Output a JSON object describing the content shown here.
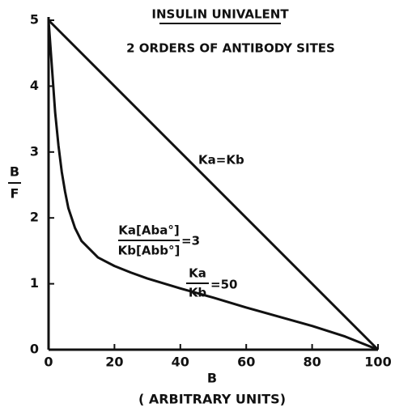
{
  "chart_data": {
    "type": "line",
    "title": "INSULIN UNIVALENT",
    "subtitle": "2 ORDERS OF ANTIBODY SITES",
    "x_label": "B",
    "x_label_sub": "( ARBITRARY UNITS)",
    "y_label": {
      "numerator": "B",
      "denominator": "F"
    },
    "xlim": [
      0,
      100
    ],
    "ylim": [
      0,
      5
    ],
    "xticks": [
      0,
      20,
      40,
      60,
      80,
      100
    ],
    "yticks": [
      0,
      1,
      2,
      3,
      4,
      5
    ],
    "series": [
      {
        "color": "#111111",
        "x": [
          0,
          100
        ],
        "values": [
          5,
          0
        ]
      },
      {
        "color": "#111111",
        "x": [
          0,
          1,
          2,
          3,
          4,
          5,
          6,
          8,
          10,
          15,
          20,
          25,
          30,
          40,
          50,
          60,
          70,
          80,
          90,
          100
        ],
        "values": [
          5,
          4.3,
          3.6,
          3.1,
          2.7,
          2.4,
          2.15,
          1.85,
          1.65,
          1.4,
          1.27,
          1.17,
          1.08,
          0.93,
          0.79,
          0.64,
          0.5,
          0.36,
          0.2,
          0
        ]
      }
    ],
    "annotations": {
      "equal": "Ka=Kb",
      "ratio_top": "Ka[Aba°]",
      "ratio_bottom": "Kb[Abb°]",
      "ratio_value": "=3",
      "k_top": "Ka",
      "k_bottom": "Kb",
      "k_value": "=50"
    }
  }
}
